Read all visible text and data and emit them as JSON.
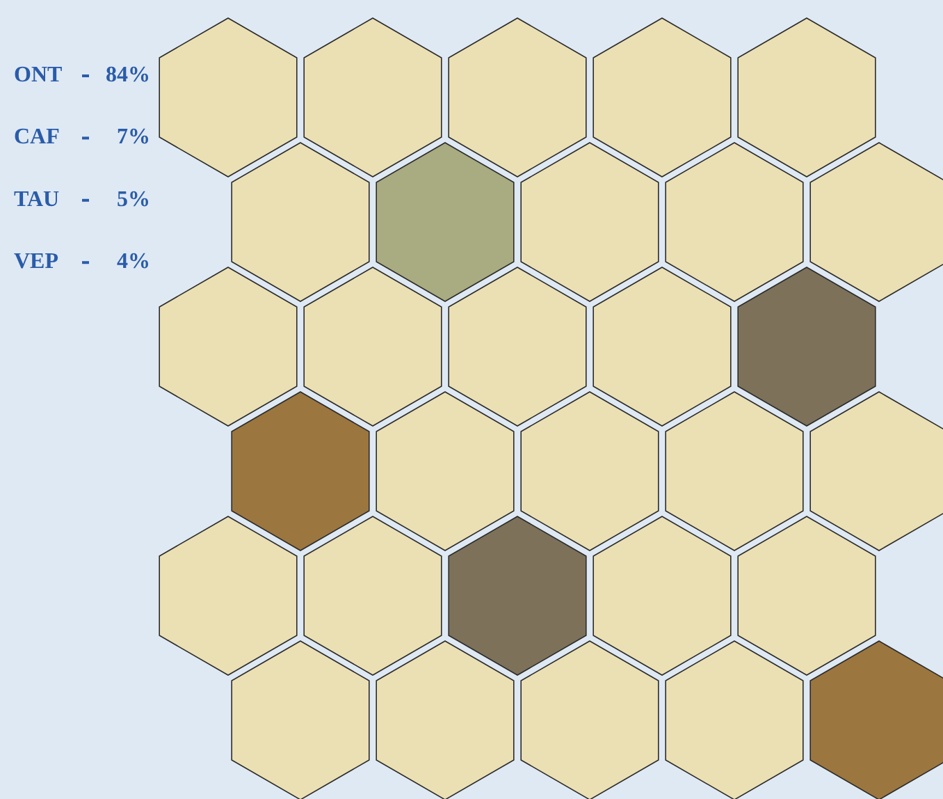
{
  "chart_data": {
    "type": "other",
    "categories": [
      "ONT",
      "CAF",
      "TAU",
      "VEP"
    ],
    "values": [
      84,
      7,
      5,
      4
    ],
    "value_labels": [
      "84%",
      "7%",
      "5%",
      "4%"
    ],
    "colors": [
      "#ebdfb4",
      "#a9ab80",
      "#7d7159",
      "#9c763f"
    ]
  }
}
